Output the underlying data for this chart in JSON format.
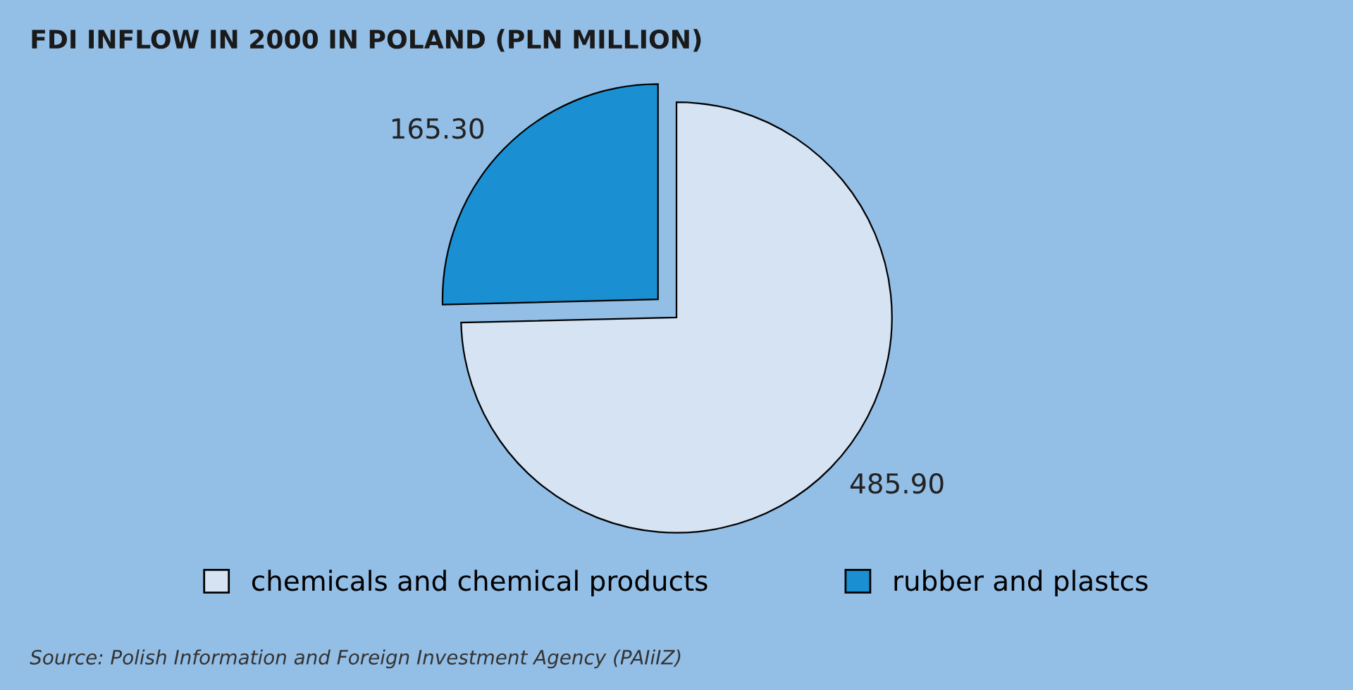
{
  "chart_data": {
    "type": "pie",
    "title": "FDI INFLOW IN 2000 IN POLAND (PLN MILLION)",
    "categories": [
      "chemicals and chemical products",
      "rubber and plastcs"
    ],
    "values": [
      485.9,
      165.3
    ],
    "colors": [
      "#d5e3f3",
      "#1a90d2"
    ],
    "value_labels": [
      "485.90",
      "165.30"
    ],
    "legend": "bottom",
    "annotations": [
      "Source: Polish Information and Foreign Investment Agency (PAIiIZ)"
    ]
  }
}
